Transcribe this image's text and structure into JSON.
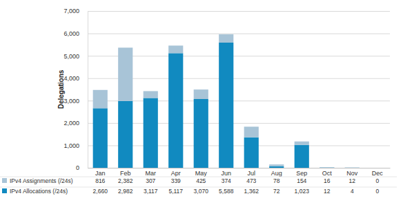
{
  "chart_data": {
    "type": "bar",
    "stacked": true,
    "data_labels": true,
    "grid": true,
    "y_label": "Delegations",
    "categories": [
      "Jan",
      "Feb",
      "Mar",
      "Apr",
      "May",
      "Jun",
      "Jul",
      "Aug",
      "Sep",
      "Oct",
      "Nov",
      "Dec"
    ],
    "series": [
      {
        "name": "IPv4 Allocations (/24s)",
        "color": "#118ac0",
        "values": [
          2660,
          2982,
          3117,
          5117,
          3070,
          5588,
          1362,
          72,
          1023,
          12,
          4,
          0
        ],
        "value_labels": [
          "2,660",
          "2,982",
          "3,117",
          "5,117",
          "3,070",
          "5,588",
          "1,362",
          "72",
          "1,023",
          "12",
          "4",
          "0"
        ]
      },
      {
        "name": "IPv4 Assignments (/24s)",
        "color": "#a8c4d7",
        "values": [
          816,
          2382,
          307,
          339,
          425,
          374,
          473,
          78,
          154,
          16,
          12,
          0
        ],
        "value_labels": [
          "816",
          "2,382",
          "307",
          "339",
          "425",
          "374",
          "473",
          "78",
          "154",
          "16",
          "12",
          "0"
        ]
      }
    ],
    "ylim": [
      0,
      7000
    ],
    "yticks": [
      0,
      {
        "value": 1000,
        "label": "1,000"
      },
      {
        "value": 2000,
        "label": "2,000"
      },
      {
        "value": 3000,
        "label": "3,000"
      },
      {
        "value": 4000,
        "label": "4,000"
      },
      {
        "value": 5000,
        "label": "5,000"
      },
      {
        "value": 6000,
        "label": "6,000"
      },
      {
        "value": 7000,
        "label": "7,000"
      }
    ]
  }
}
